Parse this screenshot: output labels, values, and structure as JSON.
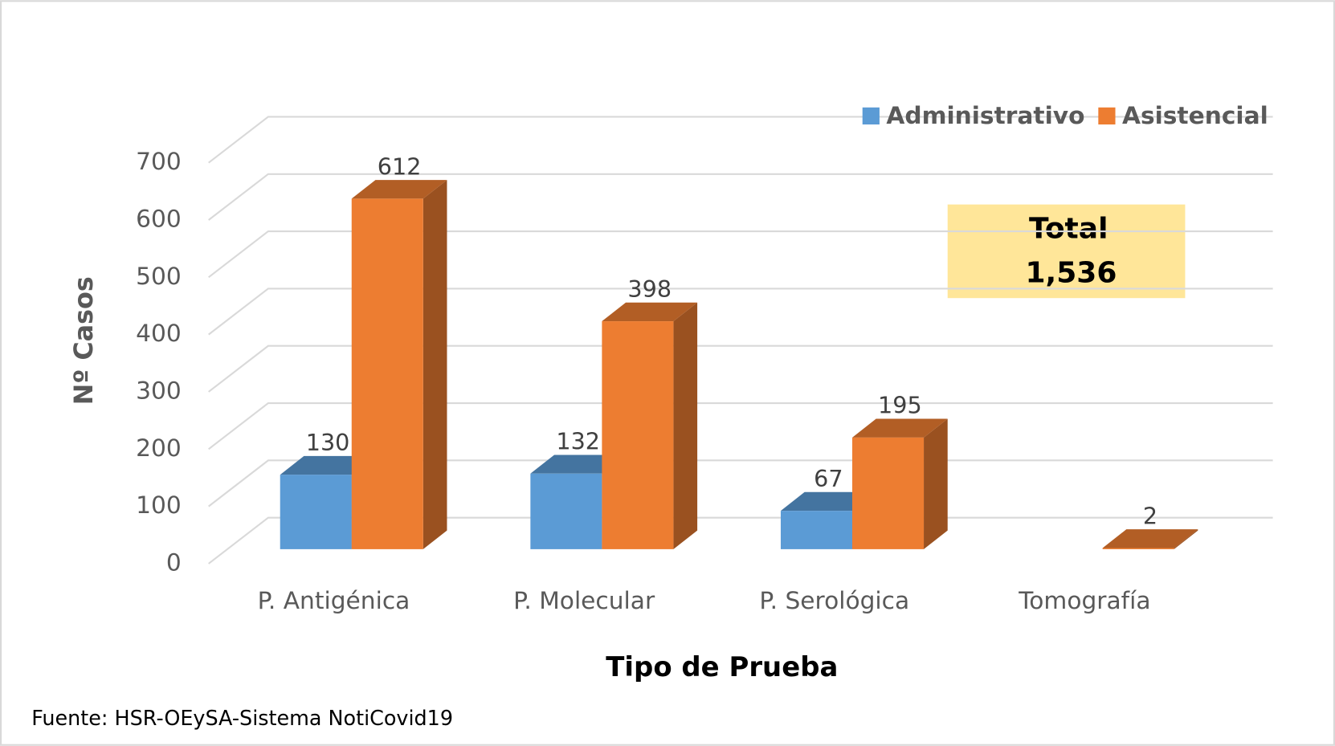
{
  "chart_data": {
    "type": "bar3d",
    "x_label": "Tipo de Prueba",
    "y_label": "Nº Casos",
    "categories": [
      "P. Antigénica",
      "P. Molecular",
      "P. Serológica",
      "Tomografía"
    ],
    "series": [
      {
        "name": "Administrativo",
        "color": "#5b9bd5",
        "values": [
          130,
          132,
          67,
          null
        ]
      },
      {
        "name": "Asistencial",
        "color": "#ed7d31",
        "values": [
          612,
          398,
          195,
          2
        ]
      }
    ],
    "ylim": [
      0,
      700
    ],
    "yticks": [
      0,
      100,
      200,
      300,
      400,
      500,
      600,
      700
    ],
    "grid": true,
    "annotation": {
      "title": "Total",
      "value": "1,536"
    },
    "source": "Fuente: HSR-OEySA-Sistema NotiCovid19"
  }
}
